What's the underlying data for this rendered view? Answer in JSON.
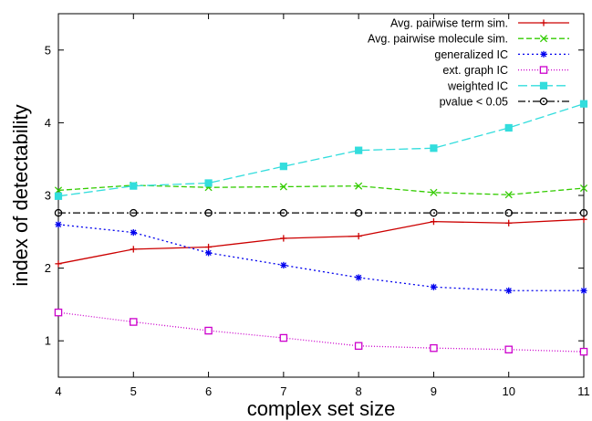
{
  "chart_data": {
    "type": "line",
    "title": "",
    "xlabel": "complex set size",
    "ylabel": "index of detectability",
    "xlim": [
      4,
      11
    ],
    "ylim": [
      0.5,
      5.5
    ],
    "x_ticks": [
      "4",
      "5",
      "6",
      "7",
      "8",
      "9",
      "10",
      "11"
    ],
    "y_ticks": [
      "1",
      "2",
      "3",
      "4",
      "5"
    ],
    "grid": false,
    "legend_position": "top-right",
    "x": [
      4,
      5,
      6,
      7,
      8,
      9,
      10,
      11
    ],
    "series": [
      {
        "name": "Avg. pairwise term sim.",
        "color": "#cc0000",
        "dash": "solid",
        "marker": "plus",
        "values": [
          2.06,
          2.26,
          2.29,
          2.41,
          2.44,
          2.64,
          2.62,
          2.67
        ]
      },
      {
        "name": "Avg. pairwise molecule sim.",
        "color": "#33cc00",
        "dash": "dashed",
        "marker": "cross",
        "values": [
          3.07,
          3.14,
          3.11,
          3.12,
          3.13,
          3.04,
          3.01,
          3.1
        ]
      },
      {
        "name": "generalized IC",
        "color": "#0000ee",
        "dash": "dotted",
        "marker": "star",
        "values": [
          2.6,
          2.49,
          2.21,
          2.04,
          1.87,
          1.74,
          1.69,
          1.69
        ]
      },
      {
        "name": "ext. graph IC",
        "color": "#cc00cc",
        "dash": "finedot",
        "marker": "square",
        "values": [
          1.39,
          1.26,
          1.14,
          1.04,
          0.93,
          0.9,
          0.88,
          0.85
        ]
      },
      {
        "name": "weighted IC",
        "color": "#33dddd",
        "dash": "longdash",
        "marker": "filledsquare",
        "values": [
          2.99,
          3.13,
          3.17,
          3.4,
          3.62,
          3.65,
          3.93,
          4.26
        ]
      },
      {
        "name": "pvalue < 0.05",
        "color": "#000000",
        "dash": "dashdot",
        "marker": "circle",
        "values": [
          2.76,
          2.76,
          2.76,
          2.76,
          2.76,
          2.76,
          2.76,
          2.76
        ]
      }
    ]
  }
}
